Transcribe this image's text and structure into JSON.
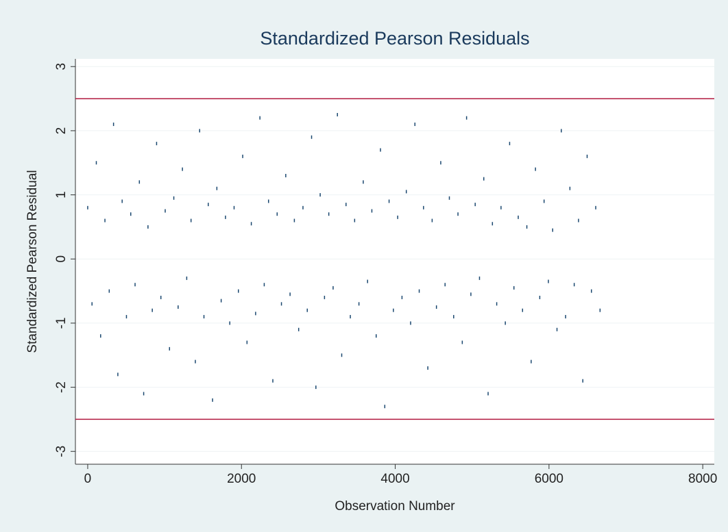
{
  "chart_data": {
    "type": "scatter",
    "title": "Standardized Pearson Residuals",
    "xlabel": "Observation Number",
    "ylabel": "Standardized Pearson Residual",
    "xlim": [
      -160,
      8150
    ],
    "ylim": [
      -3.2,
      3.12
    ],
    "xticks": [
      0,
      2000,
      4000,
      6000,
      8000
    ],
    "yticks": [
      -3,
      -2,
      -1,
      0,
      1,
      2,
      3
    ],
    "grid": true,
    "color": "#1a476f",
    "hlines": [
      2.5,
      -2.5
    ],
    "hline_color": "#b0173e",
    "x": [
      0,
      56,
      112,
      168,
      224,
      280,
      336,
      392,
      448,
      504,
      560,
      616,
      672,
      728,
      784,
      840,
      896,
      952,
      1008,
      1064,
      1120,
      1176,
      1232,
      1288,
      1344,
      1400,
      1456,
      1512,
      1568,
      1624,
      1680,
      1736,
      1792,
      1848,
      1904,
      1960,
      2016,
      2072,
      2128,
      2184,
      2240,
      2296,
      2352,
      2408,
      2464,
      2520,
      2576,
      2632,
      2688,
      2744,
      2800,
      2856,
      2912,
      2968,
      3024,
      3080,
      3136,
      3192,
      3248,
      3304,
      3360,
      3416,
      3472,
      3528,
      3584,
      3640,
      3696,
      3752,
      3808,
      3864,
      3920,
      3976,
      4032,
      4088,
      4144,
      4200,
      4256,
      4312,
      4368,
      4424,
      4480,
      4536,
      4592,
      4648,
      4704,
      4760,
      4816,
      4872,
      4928,
      4984,
      5040,
      5096,
      5152,
      5208,
      5264,
      5320,
      5376,
      5432,
      5488,
      5544,
      5600,
      5656,
      5712,
      5768,
      5824,
      5880,
      5936,
      5992,
      6048,
      6104,
      6160,
      6216,
      6272,
      6328,
      6384,
      6440,
      6496,
      6552,
      6608,
      6664
    ],
    "values": [
      0.8,
      -0.7,
      1.5,
      -1.2,
      0.6,
      -0.5,
      2.1,
      -1.8,
      0.9,
      -0.9,
      0.7,
      -0.4,
      1.2,
      -2.1,
      0.5,
      -0.8,
      1.8,
      -0.6,
      0.75,
      -1.4,
      0.95,
      -0.75,
      1.4,
      -0.3,
      0.6,
      -1.6,
      2.0,
      -0.9,
      0.85,
      -2.2,
      1.1,
      -0.65,
      0.65,
      -1.0,
      0.8,
      -0.5,
      1.6,
      -1.3,
      0.55,
      -0.85,
      2.2,
      -0.4,
      0.9,
      -1.9,
      0.7,
      -0.7,
      1.3,
      -0.55,
      0.6,
      -1.1,
      0.8,
      -0.8,
      1.9,
      -2.0,
      1.0,
      -0.6,
      0.7,
      -0.45,
      2.25,
      -1.5,
      0.85,
      -0.9,
      0.6,
      -0.7,
      1.2,
      -0.35,
      0.75,
      -1.2,
      1.7,
      -2.3,
      0.9,
      -0.8,
      0.65,
      -0.6,
      1.05,
      -1.0,
      2.1,
      -0.5,
      0.8,
      -1.7,
      0.6,
      -0.75,
      1.5,
      -0.4,
      0.95,
      -0.9,
      0.7,
      -1.3,
      2.2,
      -0.55,
      0.85,
      -0.3,
      1.25,
      -2.1,
      0.55,
      -0.7,
      0.8,
      -1.0,
      1.8,
      -0.45,
      0.65,
      -0.8,
      0.5,
      -1.6,
      1.4,
      -0.6,
      0.9,
      -0.35,
      0.45,
      -1.1,
      2.0,
      -0.9,
      1.1,
      -0.4,
      0.6,
      -1.9,
      1.6,
      -0.5,
      0.8,
      -0.8
    ]
  }
}
